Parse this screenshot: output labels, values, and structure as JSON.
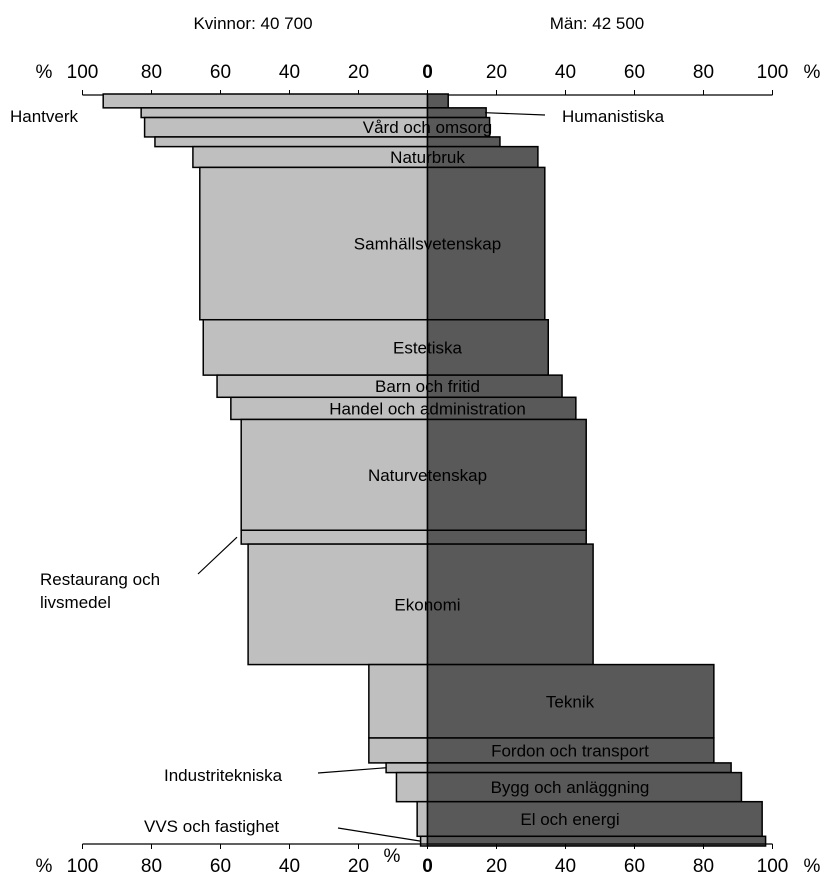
{
  "header": {
    "women_label": "Kvinnor: 40 700",
    "men_label": "Män: 42 500"
  },
  "chart_data": {
    "type": "bar",
    "orientation": "horizontal-diverging",
    "variable_width": true,
    "percent_symbol": "%",
    "women_ticks": [
      "100",
      "80",
      "60",
      "40",
      "20",
      "0"
    ],
    "men_ticks": [
      "0",
      "20",
      "40",
      "60",
      "80",
      "100"
    ],
    "xlim": [
      0,
      100
    ],
    "colors": {
      "women": "#bfbfbf",
      "men": "#595959",
      "outline": "#000000"
    },
    "categories": [
      {
        "name": "Hantverk",
        "women_pct": 94,
        "men_pct": 6,
        "weight": 1.0
      },
      {
        "name": "Humanistiska",
        "women_pct": 83,
        "men_pct": 17,
        "weight": 0.7
      },
      {
        "name": "Vård och omsorg",
        "women_pct": 82,
        "men_pct": 18,
        "weight": 1.4
      },
      {
        "name": "",
        "women_pct": 79,
        "men_pct": 21,
        "weight": 0.7
      },
      {
        "name": "Naturbruk",
        "women_pct": 68,
        "men_pct": 32,
        "weight": 1.5
      },
      {
        "name": "Samhällsvetenskap",
        "women_pct": 66,
        "men_pct": 34,
        "weight": 11.0
      },
      {
        "name": "Estetiska",
        "women_pct": 65,
        "men_pct": 35,
        "weight": 4.0
      },
      {
        "name": "Barn och fritid",
        "women_pct": 61,
        "men_pct": 39,
        "weight": 1.6
      },
      {
        "name": "Handel och administration",
        "women_pct": 57,
        "men_pct": 43,
        "weight": 1.6
      },
      {
        "name": "Naturvetenskap",
        "women_pct": 54,
        "men_pct": 46,
        "weight": 8.0
      },
      {
        "name": "Restaurang och livsmedel",
        "women_pct": 54,
        "men_pct": 46,
        "weight": 1.0
      },
      {
        "name": "Ekonomi",
        "women_pct": 52,
        "men_pct": 48,
        "weight": 8.7
      },
      {
        "name": "Teknik",
        "women_pct": 17,
        "men_pct": 83,
        "weight": 5.3
      },
      {
        "name": "Fordon och transport",
        "women_pct": 17,
        "men_pct": 83,
        "weight": 1.8
      },
      {
        "name": "Industritekniska",
        "women_pct": 12,
        "men_pct": 88,
        "weight": 0.7
      },
      {
        "name": "Bygg och anläggning",
        "women_pct": 9,
        "men_pct": 91,
        "weight": 2.1
      },
      {
        "name": "El och energi",
        "women_pct": 3,
        "men_pct": 97,
        "weight": 2.5
      },
      {
        "name": "VVS och fastighet",
        "women_pct": 2,
        "men_pct": 98,
        "weight": 0.7
      }
    ]
  }
}
